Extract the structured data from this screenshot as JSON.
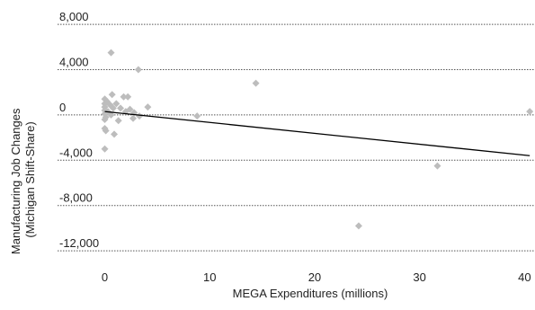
{
  "chart_data": {
    "type": "scatter",
    "title": "",
    "xlabel": "MEGA Expenditures (millions)",
    "ylabel_line1": "Manufacturing Job Changes",
    "ylabel_line2": "(Michigan Shift-Share)",
    "xlim": [
      -4.5,
      41
    ],
    "ylim": [
      -13500,
      9200
    ],
    "x_ticks": [
      0,
      10,
      20,
      30,
      40
    ],
    "x_tick_labels": [
      "0",
      "10",
      "20",
      "30",
      "40"
    ],
    "y_ticks": [
      8000,
      4000,
      0,
      -4000,
      -8000,
      -12000
    ],
    "y_tick_labels": [
      "8,000",
      "4,000",
      "0",
      "-4,000",
      "-8,000",
      "-12,000"
    ],
    "grid": "horizontal dotted",
    "legend": "none",
    "colors": {
      "points": "#bdbdbd",
      "trendline": "#000000"
    },
    "points": [
      {
        "x": 0.6,
        "y": 5500
      },
      {
        "x": 3.2,
        "y": 4000
      },
      {
        "x": 14.4,
        "y": 2800
      },
      {
        "x": 0.7,
        "y": 1800
      },
      {
        "x": 1.8,
        "y": 1600
      },
      {
        "x": 2.2,
        "y": 1600
      },
      {
        "x": 0.0,
        "y": 1400
      },
      {
        "x": 0.2,
        "y": 1200
      },
      {
        "x": 0.0,
        "y": 1000
      },
      {
        "x": 0.5,
        "y": 900
      },
      {
        "x": 1.1,
        "y": 1000
      },
      {
        "x": 0.0,
        "y": 700
      },
      {
        "x": 0.8,
        "y": 600
      },
      {
        "x": 1.5,
        "y": 600
      },
      {
        "x": 4.1,
        "y": 700
      },
      {
        "x": 2.4,
        "y": 500
      },
      {
        "x": 0.0,
        "y": 400
      },
      {
        "x": 0.3,
        "y": 300
      },
      {
        "x": 2.0,
        "y": 300
      },
      {
        "x": 2.8,
        "y": 200
      },
      {
        "x": 0.0,
        "y": 100
      },
      {
        "x": 0.6,
        "y": 0
      },
      {
        "x": 3.3,
        "y": -100
      },
      {
        "x": 0.1,
        "y": -200
      },
      {
        "x": 2.7,
        "y": -300
      },
      {
        "x": 0.0,
        "y": -400
      },
      {
        "x": 8.8,
        "y": -100
      },
      {
        "x": 1.3,
        "y": -500
      },
      {
        "x": 0.0,
        "y": -1200
      },
      {
        "x": 0.1,
        "y": -1400
      },
      {
        "x": 0.9,
        "y": -1700
      },
      {
        "x": 0.0,
        "y": -3000
      },
      {
        "x": 40.5,
        "y": 300
      },
      {
        "x": 31.7,
        "y": -4500
      },
      {
        "x": 24.2,
        "y": -9800
      }
    ],
    "trendline": {
      "x": [
        0,
        40.5
      ],
      "y": [
        300,
        -3600
      ]
    }
  }
}
